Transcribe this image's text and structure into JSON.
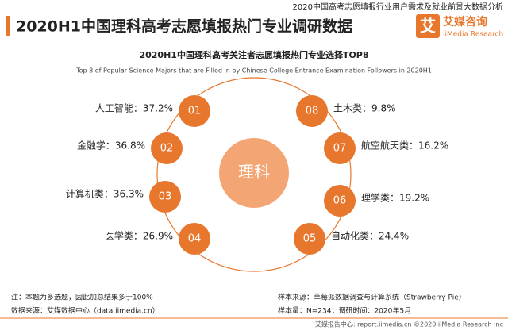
{
  "header": {
    "report": "2020中国高考志愿填报行业用户需求及就业前景大数据分析",
    "title": "2020H1中国理科高考志愿填报热门专业调研数据",
    "logo_mark": "艾",
    "logo_name": "艾媒咨询",
    "logo_en": "iiMedia Research"
  },
  "diagram": {
    "title": "2020H1中国理科高考关注者志愿填报热门专业选择TOP8",
    "subtitle": "Top 8 of Popular Science Majors that are Filled in by Chinese College Entrance Examination Followers in 2020H1",
    "center": "理科",
    "items": [
      {
        "rank": "01",
        "label": "人工智能：37.2%"
      },
      {
        "rank": "02",
        "label": "金融学：36.8%"
      },
      {
        "rank": "03",
        "label": "计算机类：36.3%"
      },
      {
        "rank": "04",
        "label": "医学类：26.9%"
      },
      {
        "rank": "05",
        "label": "自动化类：24.4%"
      },
      {
        "rank": "06",
        "label": "理学类：19.2%"
      },
      {
        "rank": "07",
        "label": "航空航天类：16.2%"
      },
      {
        "rank": "08",
        "label": "土木类：9.8%"
      }
    ]
  },
  "footer": {
    "note": "注：本题为多选题，因此加总结果多于100%",
    "source": "数据来源：艾媒数据中心（data.iimedia.cn）",
    "sample_source": "样本来源：草莓派数据调查与计算系统（Strawberry Pie）",
    "sample_size": "样本量：N=234；调研时间：2020年5月",
    "copyright": "艾媒报告中心: report.iimedia.cn  ©2020  iiMedia Research  Inc"
  }
}
